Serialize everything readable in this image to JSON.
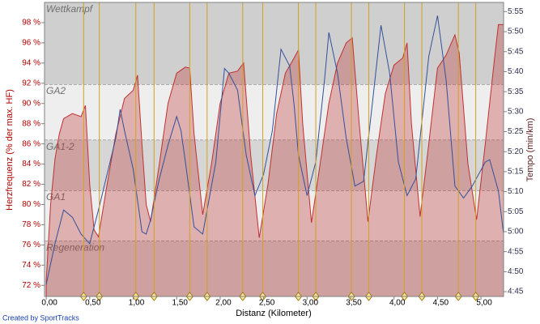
{
  "chart_data": {
    "type": "area",
    "y_label": "Herzfrequenz (% der max. HF)",
    "y2_label": "Tempo (min/km)",
    "x_label": "Distanz (Kilometer)",
    "footer": "Created by SportTracks",
    "xlim": [
      -0.02,
      5.26
    ],
    "ylim": [
      70.9,
      100
    ],
    "y2lim": [
      4.73,
      5.955
    ],
    "xticks": [
      {
        "value": 0,
        "label": "0,00"
      },
      {
        "value": 0.5,
        "label": "0,50"
      },
      {
        "value": 1,
        "label": "1,00"
      },
      {
        "value": 1.5,
        "label": "1,50"
      },
      {
        "value": 2,
        "label": "2,00"
      },
      {
        "value": 2.5,
        "label": "2,50"
      },
      {
        "value": 3,
        "label": "3,00"
      },
      {
        "value": 3.5,
        "label": "3,50"
      },
      {
        "value": 4,
        "label": "4,00"
      },
      {
        "value": 4.5,
        "label": "4,50"
      },
      {
        "value": 5,
        "label": "5,00"
      }
    ],
    "yticks": [
      {
        "value": 72,
        "label": "72 %"
      },
      {
        "value": 74,
        "label": "74 %"
      },
      {
        "value": 76,
        "label": "76 %"
      },
      {
        "value": 78,
        "label": "78 %"
      },
      {
        "value": 80,
        "label": "80 %"
      },
      {
        "value": 82,
        "label": "82 %"
      },
      {
        "value": 84,
        "label": "84 %"
      },
      {
        "value": 86,
        "label": "86 %"
      },
      {
        "value": 88,
        "label": "88 %"
      },
      {
        "value": 90,
        "label": "90 %"
      },
      {
        "value": 92,
        "label": "92 %"
      },
      {
        "value": 94,
        "label": "94 %"
      },
      {
        "value": 96,
        "label": "96 %"
      },
      {
        "value": 98,
        "label": "98 %"
      }
    ],
    "y2ticks": [
      {
        "value": 4.75,
        "label": "4:45"
      },
      {
        "value": 4.8333,
        "label": "4:50"
      },
      {
        "value": 4.9167,
        "label": "4:55"
      },
      {
        "value": 5,
        "label": "5:00"
      },
      {
        "value": 5.0833,
        "label": "5:05"
      },
      {
        "value": 5.1667,
        "label": "5:10"
      },
      {
        "value": 5.25,
        "label": "5:15"
      },
      {
        "value": 5.3333,
        "label": "5:20"
      },
      {
        "value": 5.4167,
        "label": "5:25"
      },
      {
        "value": 5.5,
        "label": "5:30"
      },
      {
        "value": 5.5833,
        "label": "5:35"
      },
      {
        "value": 5.6667,
        "label": "5:40"
      },
      {
        "value": 5.75,
        "label": "5:45"
      },
      {
        "value": 5.8333,
        "label": "5:50"
      },
      {
        "value": 5.9167,
        "label": "5:55"
      }
    ],
    "zones": [
      {
        "name": "Regeneration",
        "range": [
          70.9,
          76.4
        ],
        "color": "#d6d6d6"
      },
      {
        "name": "GA1",
        "range": [
          76.4,
          81.4
        ],
        "color": "#eeeeee"
      },
      {
        "name": "GA1-2",
        "range": [
          81.4,
          86.4
        ],
        "color": "#d6d6d6"
      },
      {
        "name": "GA2",
        "range": [
          86.4,
          91.9
        ],
        "color": "#eeeeee"
      },
      {
        "name": "Wettkampf",
        "range": [
          91.9,
          100
        ],
        "color": "#cfcfcf"
      }
    ],
    "lap_markers": [
      0.43,
      0.61,
      1.03,
      1.24,
      1.65,
      1.85,
      2.26,
      2.49,
      2.9,
      3.1,
      3.51,
      3.71,
      4.12,
      4.32,
      4.74,
      4.94
    ],
    "lap_color": "#d4a020",
    "series": [
      {
        "type": "area",
        "color": "#c03030",
        "x": [
          0,
          0.05,
          0.1,
          0.15,
          0.2,
          0.3,
          0.4,
          0.45,
          0.5,
          0.55,
          0.6,
          0.7,
          0.8,
          0.9,
          1.0,
          1.05,
          1.1,
          1.15,
          1.2,
          1.3,
          1.4,
          1.5,
          1.6,
          1.65,
          1.7,
          1.8,
          1.9,
          2.0,
          2.1,
          2.2,
          2.27,
          2.35,
          2.45,
          2.55,
          2.65,
          2.75,
          2.85,
          2.9,
          2.95,
          3.05,
          3.15,
          3.25,
          3.35,
          3.45,
          3.52,
          3.6,
          3.7,
          3.8,
          3.9,
          4.0,
          4.1,
          4.15,
          4.2,
          4.3,
          4.4,
          4.5,
          4.6,
          4.7,
          4.75,
          4.85,
          4.95,
          5.05,
          5.15,
          5.2,
          5.26
        ],
        "values": [
          72.5,
          80,
          84.5,
          87,
          88.5,
          89,
          88.7,
          89.8,
          82,
          77.5,
          76.8,
          82,
          87,
          90.5,
          91.3,
          92.8,
          86,
          80,
          78.3,
          84,
          90,
          93,
          93.6,
          93.5,
          87,
          79,
          84,
          90,
          93,
          93.2,
          94,
          85,
          76.7,
          82,
          89,
          93,
          94.5,
          95.3,
          88,
          78.2,
          84,
          90,
          94,
          96,
          96.5,
          88,
          78.3,
          85,
          91,
          93.8,
          94.5,
          96,
          88,
          78.8,
          86,
          93.5,
          94.8,
          96.8,
          95,
          84,
          78.5,
          86,
          94,
          97.8,
          97.8
        ]
      },
      {
        "type": "line",
        "axis": "y2",
        "color": "#34509a",
        "x": [
          0,
          0.1,
          0.2,
          0.3,
          0.4,
          0.5,
          0.6,
          0.7,
          0.8,
          0.85,
          0.9,
          1.0,
          1.1,
          1.15,
          1.2,
          1.3,
          1.4,
          1.5,
          1.55,
          1.6,
          1.7,
          1.8,
          1.85,
          1.95,
          2.05,
          2.1,
          2.2,
          2.3,
          2.4,
          2.5,
          2.6,
          2.7,
          2.8,
          2.85,
          2.9,
          3.0,
          3.1,
          3.2,
          3.25,
          3.35,
          3.45,
          3.55,
          3.65,
          3.75,
          3.85,
          3.95,
          4.05,
          4.15,
          4.25,
          4.35,
          4.4,
          4.5,
          4.6,
          4.7,
          4.8,
          4.9,
          5.05,
          5.1,
          5.2,
          5.26
        ],
        "values": [
          4.78,
          4.95,
          5.09,
          5.06,
          4.99,
          4.95,
          5.09,
          5.24,
          5.39,
          5.51,
          5.42,
          5.26,
          5.0,
          4.99,
          5.05,
          5.22,
          5.36,
          5.48,
          5.42,
          5.29,
          5.02,
          4.99,
          5.09,
          5.29,
          5.68,
          5.66,
          5.59,
          5.32,
          5.15,
          5.24,
          5.42,
          5.76,
          5.69,
          5.53,
          5.32,
          5.15,
          5.29,
          5.63,
          5.83,
          5.66,
          5.39,
          5.19,
          5.21,
          5.53,
          5.86,
          5.66,
          5.29,
          5.15,
          5.22,
          5.56,
          5.73,
          5.9,
          5.63,
          5.19,
          5.14,
          5.19,
          5.29,
          5.3,
          5.17,
          4.99
        ]
      }
    ]
  }
}
